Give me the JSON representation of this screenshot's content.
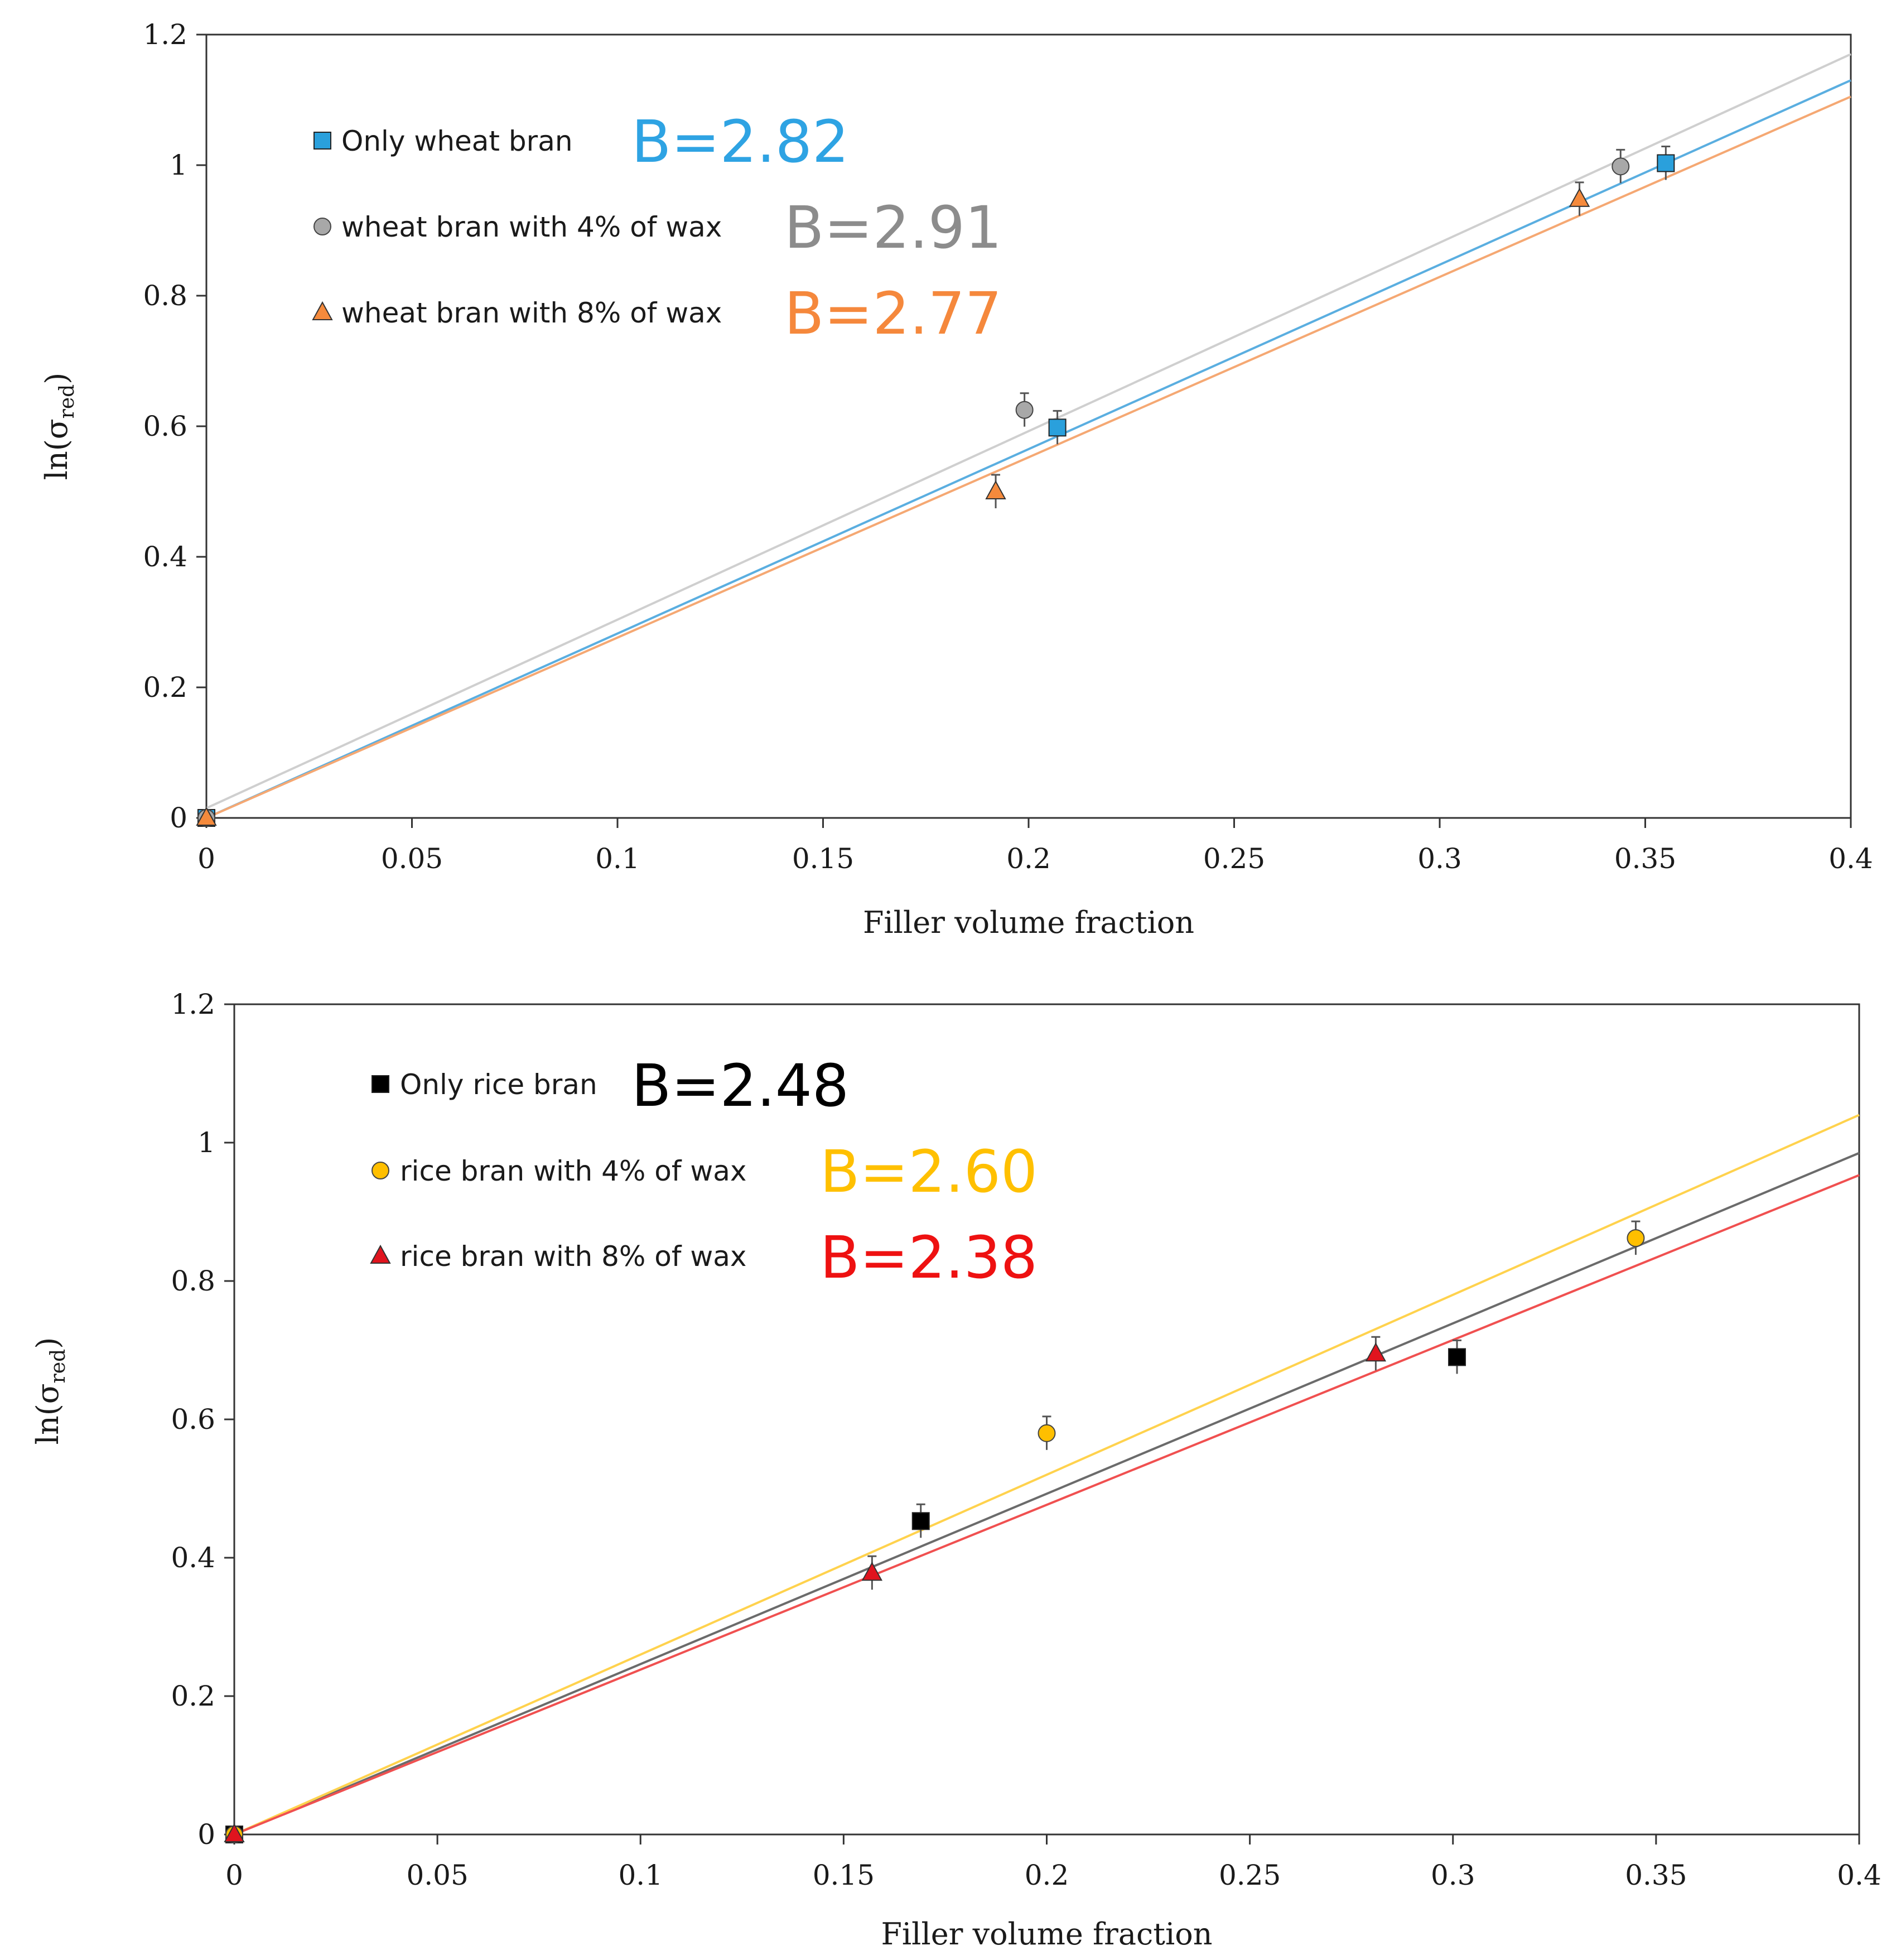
{
  "chart_data": [
    {
      "type": "scatter",
      "title": "",
      "xlabel": "Filler volume fraction",
      "ylabel": {
        "main": "ln(σ",
        "sub": "red",
        "close": ")"
      },
      "xlim": [
        0,
        0.4
      ],
      "ylim": [
        0,
        1.2
      ],
      "x_ticks": [
        "0",
        "0.05",
        "0.1",
        "0.15",
        "0.2",
        "0.25",
        "0.3",
        "0.35",
        "0.4"
      ],
      "y_ticks": [
        "0",
        "0.2",
        "0.4",
        "0.6",
        "0.8",
        "1",
        "1.2"
      ],
      "grid": false,
      "legend_position": "top-left",
      "series": [
        {
          "name": "Only wheat bran",
          "marker": "square",
          "color": "#2aa0dc",
          "line_color": "#5aaee0",
          "fit_label": "B=2.82",
          "fit_color": "#2ea3e3",
          "fit": [
            [
              0,
              0.0
            ],
            [
              0.4,
              1.13
            ]
          ],
          "points": [
            [
              0,
              0
            ],
            [
              0.207,
              0.598
            ],
            [
              0.355,
              1.003
            ]
          ]
        },
        {
          "name": "wheat bran with 4% of wax",
          "marker": "circle",
          "color": "#a8a8a8",
          "line_color": "#cfcfcf",
          "fit_label": "B=2.91",
          "fit_color": "#8c8c8c",
          "fit": [
            [
              0,
              0.015
            ],
            [
              0.4,
              1.17
            ]
          ],
          "points": [
            [
              0,
              0
            ],
            [
              0.199,
              0.625
            ],
            [
              0.344,
              0.998
            ]
          ]
        },
        {
          "name": "wheat bran with 8% of wax",
          "marker": "triangle",
          "color": "#f58a3c",
          "line_color": "#f5a873",
          "fit_label": "B=2.77",
          "fit_color": "#f5883c",
          "fit": [
            [
              0,
              0.0
            ],
            [
              0.4,
              1.105
            ]
          ],
          "points": [
            [
              0,
              0
            ],
            [
              0.192,
              0.5
            ],
            [
              0.334,
              0.948
            ]
          ]
        }
      ]
    },
    {
      "type": "scatter",
      "title": "",
      "xlabel": "Filler volume fraction",
      "ylabel": {
        "main": "ln(σ",
        "sub": "red",
        "close": ")"
      },
      "xlim": [
        0,
        0.4
      ],
      "ylim": [
        0,
        1.2
      ],
      "x_ticks": [
        "0",
        "0.05",
        "0.1",
        "0.15",
        "0.2",
        "0.25",
        "0.3",
        "0.35",
        "0.4"
      ],
      "y_ticks": [
        "0",
        "0.2",
        "0.4",
        "0.6",
        "0.8",
        "1",
        "1.2"
      ],
      "grid": false,
      "legend_position": "top-left",
      "series": [
        {
          "name": "Only rice bran",
          "marker": "square",
          "color": "#000000",
          "line_color": "#6b6b6b",
          "fit_label": "B=2.48",
          "fit_color": "#000000",
          "fit": [
            [
              0,
              0.0
            ],
            [
              0.4,
              0.985
            ]
          ],
          "points": [
            [
              0,
              0
            ],
            [
              0.169,
              0.453
            ],
            [
              0.301,
              0.69
            ]
          ]
        },
        {
          "name": "rice bran with 4% of wax",
          "marker": "circle",
          "color": "#ffbf00",
          "line_color": "#ffd24d",
          "fit_label": "B=2.60",
          "fit_color": "#ffc000",
          "fit": [
            [
              0,
              0.0
            ],
            [
              0.4,
              1.04
            ]
          ],
          "points": [
            [
              0,
              0
            ],
            [
              0.2,
              0.58
            ],
            [
              0.345,
              0.862
            ]
          ]
        },
        {
          "name": "rice bran with 8% of wax",
          "marker": "triangle",
          "color": "#e0141e",
          "line_color": "#f05050",
          "fit_label": "B=2.38",
          "fit_color": "#ee1111",
          "fit": [
            [
              0,
              0.0
            ],
            [
              0.4,
              0.953
            ]
          ],
          "points": [
            [
              0,
              0
            ],
            [
              0.157,
              0.378
            ],
            [
              0.281,
              0.695
            ]
          ]
        }
      ]
    }
  ]
}
